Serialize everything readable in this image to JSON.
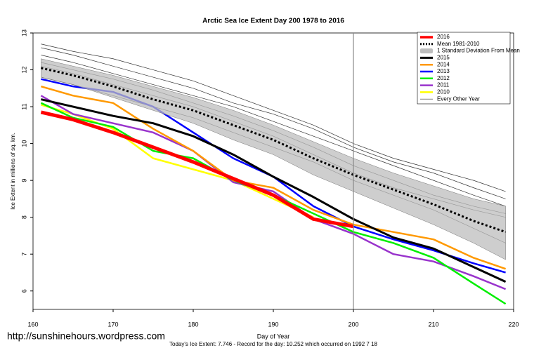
{
  "chart_data": {
    "type": "line",
    "title": "Arctic Sea Ice Extent Day 200 1978 to 2016",
    "x_label": "Day of Year",
    "y_label": "Ice Extent in millions of sq. km.",
    "footer": "Today's Ice Extent: 7.746  - Record for the day: 10.252 which occurred on 1992 7 18",
    "watermark": "http://sunshinehours.wordpress.com",
    "x": [
      161,
      165,
      170,
      175,
      180,
      185,
      190,
      195,
      200,
      205,
      210,
      215,
      219
    ],
    "xlim": [
      160,
      220
    ],
    "xticks": [
      160,
      170,
      180,
      190,
      200,
      210,
      220
    ],
    "ylim": [
      5.5,
      13
    ],
    "yticks": [
      6,
      7,
      8,
      9,
      10,
      11,
      12,
      13
    ],
    "vline": 200,
    "legend": "top-right",
    "series": [
      {
        "name": "2016",
        "color": "#ff0000",
        "width": 5,
        "values": [
          10.85,
          10.65,
          10.3,
          9.9,
          9.5,
          9.05,
          8.6,
          7.95,
          7.75,
          null,
          null,
          null,
          null
        ]
      },
      {
        "name": "Mean 1981-2010",
        "color": "#000000",
        "width": 3,
        "dash": true,
        "values": [
          12.05,
          11.85,
          11.55,
          11.2,
          10.9,
          10.5,
          10.1,
          9.6,
          9.15,
          8.75,
          8.35,
          7.9,
          7.6
        ]
      },
      {
        "name": "1 Standard Deviation From Mean",
        "color": "#bdbdbd",
        "upper": [
          12.3,
          12.1,
          11.85,
          11.55,
          11.25,
          10.9,
          10.5,
          10.05,
          9.6,
          9.2,
          8.85,
          8.5,
          8.3
        ],
        "lower": [
          11.8,
          11.6,
          11.25,
          10.9,
          10.55,
          10.1,
          9.7,
          9.15,
          8.7,
          8.25,
          7.8,
          7.3,
          6.85
        ]
      },
      {
        "name": "2015",
        "color": "#000000",
        "width": 3,
        "values": [
          11.2,
          11.0,
          10.75,
          10.55,
          10.2,
          9.7,
          9.1,
          8.55,
          7.95,
          7.45,
          7.15,
          6.65,
          6.25
        ]
      },
      {
        "name": "2014",
        "color": "#ff9900",
        "width": 2.5,
        "values": [
          11.55,
          11.3,
          11.1,
          10.4,
          9.8,
          9.0,
          8.8,
          8.2,
          7.8,
          7.6,
          7.4,
          6.9,
          6.6
        ]
      },
      {
        "name": "2013",
        "color": "#0000ff",
        "width": 2.5,
        "values": [
          11.75,
          11.55,
          11.4,
          11.0,
          10.3,
          9.6,
          9.1,
          8.3,
          7.75,
          7.4,
          7.1,
          6.75,
          6.5
        ]
      },
      {
        "name": "2012",
        "color": "#00ee00",
        "width": 2.5,
        "values": [
          11.1,
          10.7,
          10.45,
          9.8,
          9.6,
          9.0,
          8.6,
          8.1,
          7.6,
          7.3,
          6.9,
          6.2,
          5.65
        ]
      },
      {
        "name": "2011",
        "color": "#9933cc",
        "width": 2.5,
        "values": [
          11.3,
          10.8,
          10.55,
          10.3,
          9.8,
          8.95,
          8.7,
          7.95,
          7.55,
          7.0,
          6.8,
          6.4,
          6.05
        ]
      },
      {
        "name": "2010",
        "color": "#ffff00",
        "width": 2.5,
        "values": [
          11.05,
          10.8,
          10.4,
          9.6,
          9.3,
          9.0,
          8.5,
          8.0,
          null,
          null,
          null,
          null,
          null
        ]
      },
      {
        "name": "Every Other Year",
        "color": "#333333",
        "width": 0.7,
        "lines": [
          [
            12.7,
            12.5,
            12.3,
            12.0,
            11.7,
            11.3,
            10.9,
            10.5,
            10.0,
            9.6,
            9.3,
            9.0,
            8.7
          ],
          [
            12.4,
            12.2,
            11.9,
            11.6,
            11.3,
            11.0,
            10.6,
            10.2,
            9.8,
            9.4,
            9.0,
            8.6,
            8.3
          ],
          [
            12.1,
            11.9,
            11.6,
            11.3,
            11.0,
            10.6,
            10.2,
            9.7,
            9.2,
            8.8,
            8.5,
            8.2,
            8.0
          ],
          [
            11.8,
            11.6,
            11.3,
            11.0,
            10.7,
            10.3,
            9.9,
            9.5,
            9.0,
            8.6,
            8.2,
            7.7,
            7.3
          ],
          [
            12.6,
            12.4,
            12.1,
            11.8,
            11.5,
            11.1,
            10.8,
            10.4,
            9.9,
            9.5,
            9.2,
            8.8,
            8.5
          ],
          [
            12.2,
            12.0,
            11.75,
            11.45,
            11.1,
            10.75,
            10.35,
            9.9,
            9.4,
            9.0,
            8.6,
            8.3,
            8.1
          ]
        ]
      }
    ]
  }
}
